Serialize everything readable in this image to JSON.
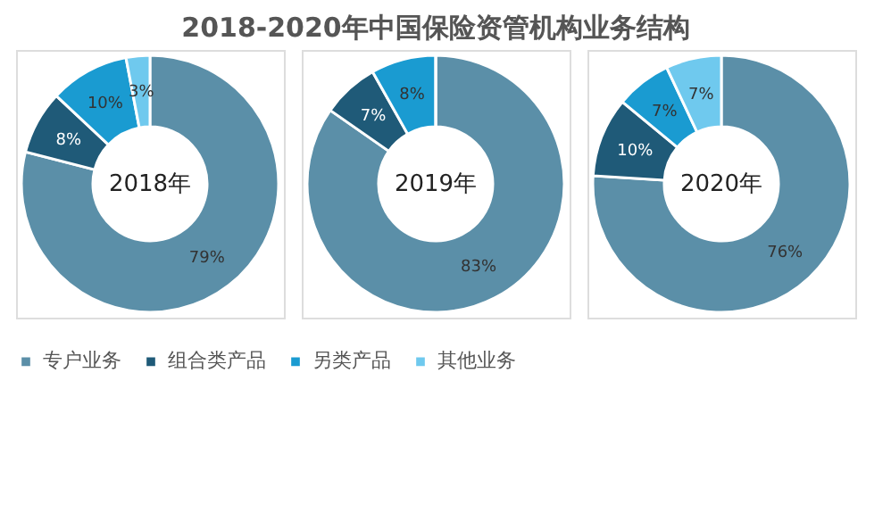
{
  "chart_data": {
    "type": "donut",
    "title": "2018-2020年中国保险资管机构业务结构",
    "categories": [
      "专户业务",
      "组合类产品",
      "另类产品",
      "其他业务"
    ],
    "colors": [
      "#5b8fa8",
      "#1f5a78",
      "#1a9bd1",
      "#6fc9ee"
    ],
    "legend": "bottom",
    "series": [
      {
        "name": "2018年",
        "values": [
          79,
          8,
          10,
          3
        ],
        "value_labels": [
          "79%",
          "8%",
          "10%",
          "3%"
        ]
      },
      {
        "name": "2019年",
        "values": [
          83,
          7,
          8,
          0
        ],
        "value_labels": [
          "83%",
          "7%",
          "8%",
          null
        ]
      },
      {
        "name": "2020年",
        "values": [
          76,
          10,
          7,
          7
        ],
        "value_labels": [
          "76%",
          "10%",
          "7%",
          "7%"
        ]
      }
    ]
  }
}
